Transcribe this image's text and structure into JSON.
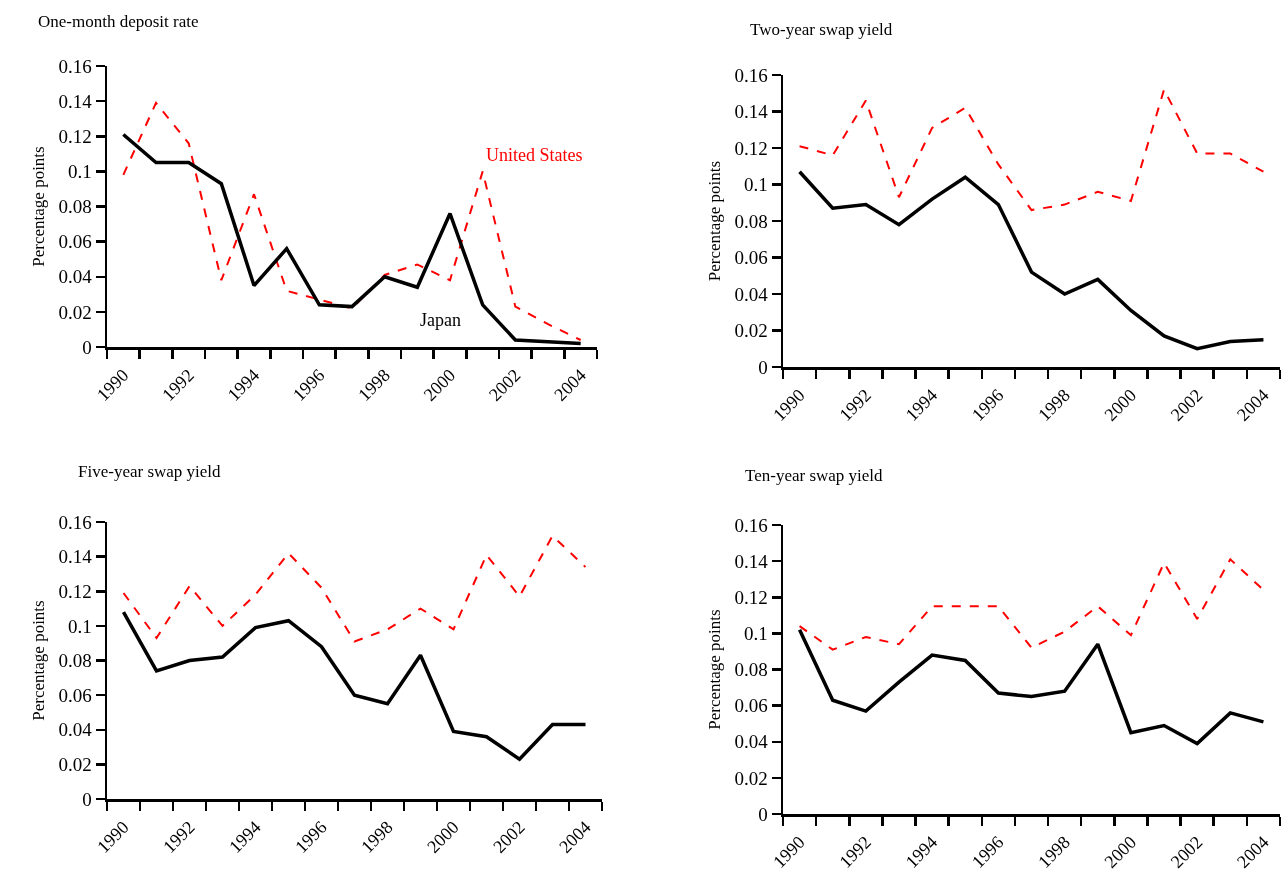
{
  "chart_data": [
    {
      "type": "line",
      "title": "One-month deposit rate",
      "ylabel": "Percentage points",
      "categories": [
        "1990",
        null,
        "1992",
        null,
        "1994",
        null,
        "1996",
        null,
        "1998",
        null,
        "2000",
        null,
        "2002",
        null,
        "2004"
      ],
      "series": [
        {
          "name": "United States",
          "color": "#ff0000",
          "line_style": "dashed",
          "values": [
            0.098,
            0.139,
            0.116,
            0.038,
            0.087,
            0.032,
            0.027,
            0.022,
            0.041,
            0.047,
            0.038,
            0.1,
            0.023,
            0.013,
            0.004
          ]
        },
        {
          "name": "Japan",
          "color": "#000000",
          "line_style": "solid",
          "values": [
            0.121,
            0.105,
            0.105,
            0.093,
            0.035,
            0.056,
            0.024,
            0.023,
            0.04,
            0.034,
            0.076,
            0.024,
            0.004,
            0.003,
            0.002
          ]
        }
      ],
      "ylim": [
        0,
        0.16
      ],
      "yticks": [
        0,
        0.02,
        0.04,
        0.06,
        0.08,
        0.1,
        0.12,
        0.14,
        0.16
      ]
    },
    {
      "type": "line",
      "title": "Two-year swap yield",
      "ylabel": "Percentage points",
      "categories": [
        "1990",
        null,
        "1992",
        null,
        "1994",
        null,
        "1996",
        null,
        "1998",
        null,
        "2000",
        null,
        "2002",
        null,
        "2004"
      ],
      "series": [
        {
          "color": "#ff0000",
          "line_style": "dashed",
          "values": [
            0.121,
            0.116,
            0.146,
            0.093,
            0.131,
            0.142,
            0.111,
            0.086,
            0.089,
            0.096,
            0.091,
            0.152,
            0.117,
            0.117,
            0.107
          ]
        },
        {
          "color": "#000000",
          "line_style": "solid",
          "values": [
            0.107,
            0.087,
            0.089,
            0.078,
            0.092,
            0.104,
            0.089,
            0.052,
            0.04,
            0.048,
            0.031,
            0.017,
            0.01,
            0.014,
            0.015
          ]
        }
      ],
      "ylim": [
        0,
        0.16
      ],
      "yticks": [
        0,
        0.02,
        0.04,
        0.06,
        0.08,
        0.1,
        0.12,
        0.14,
        0.16
      ]
    },
    {
      "type": "line",
      "title": "Five-year swap yield",
      "ylabel": "Percentage points",
      "categories": [
        "1990",
        null,
        "1992",
        null,
        "1994",
        null,
        "1996",
        null,
        "1998",
        null,
        "2000",
        null,
        "2002",
        null,
        "2004"
      ],
      "series": [
        {
          "color": "#ff0000",
          "line_style": "dashed",
          "values": [
            0.119,
            0.093,
            0.123,
            0.1,
            0.118,
            0.142,
            0.122,
            0.091,
            0.098,
            0.11,
            0.098,
            0.141,
            0.117,
            0.152,
            0.134
          ]
        },
        {
          "color": "#000000",
          "line_style": "solid",
          "values": [
            0.108,
            0.074,
            0.08,
            0.082,
            0.099,
            0.103,
            0.088,
            0.06,
            0.055,
            0.083,
            0.039,
            0.036,
            0.023,
            0.043,
            0.043
          ]
        }
      ],
      "ylim": [
        0,
        0.16
      ],
      "yticks": [
        0,
        0.02,
        0.04,
        0.06,
        0.08,
        0.1,
        0.12,
        0.14,
        0.16
      ]
    },
    {
      "type": "line",
      "title": "Ten-year swap yield",
      "ylabel": "Percentage points",
      "categories": [
        "1990",
        null,
        "1992",
        null,
        "1994",
        null,
        "1996",
        null,
        "1998",
        null,
        "2000",
        null,
        "2002",
        null,
        "2004"
      ],
      "series": [
        {
          "color": "#ff0000",
          "line_style": "dashed",
          "values": [
            0.104,
            0.091,
            0.098,
            0.094,
            0.115,
            0.115,
            0.115,
            0.092,
            0.101,
            0.115,
            0.099,
            0.139,
            0.108,
            0.141,
            0.124
          ]
        },
        {
          "color": "#000000",
          "line_style": "solid",
          "values": [
            0.102,
            0.063,
            0.057,
            0.073,
            0.088,
            0.085,
            0.067,
            0.065,
            0.068,
            0.094,
            0.045,
            0.049,
            0.039,
            0.056,
            0.051
          ]
        }
      ],
      "ylim": [
        0,
        0.16
      ],
      "yticks": [
        0,
        0.02,
        0.04,
        0.06,
        0.08,
        0.1,
        0.12,
        0.14,
        0.16
      ]
    }
  ]
}
